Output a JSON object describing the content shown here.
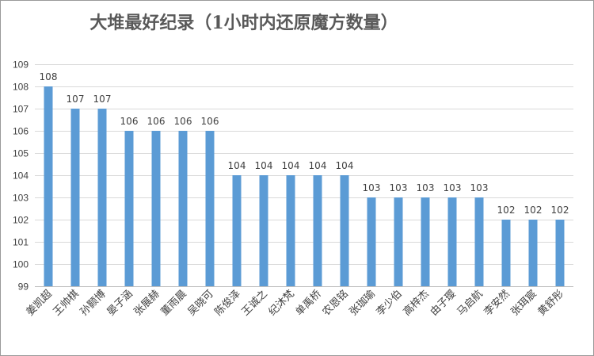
{
  "chart_data": {
    "type": "bar",
    "title": "大堆最好纪录（1小时内还原魔方数量）",
    "xlabel": "",
    "ylabel": "",
    "ylim": [
      99,
      109
    ],
    "yticks": [
      99,
      100,
      101,
      102,
      103,
      104,
      105,
      106,
      107,
      108,
      109
    ],
    "categories": [
      "姜凯超",
      "王帅棋",
      "孙颢博",
      "晏子涵",
      "张展赫",
      "董雨晨",
      "吴晓可",
      "陈俊泽",
      "王诚之",
      "纪沐梵",
      "单禹桥",
      "农恩铭",
      "张珈瑜",
      "李少伯",
      "高梓杰",
      "由子璎",
      "马启航",
      "李安然",
      "张珥宸",
      "黄舒彤"
    ],
    "values": [
      108,
      107,
      107,
      106,
      106,
      106,
      106,
      104,
      104,
      104,
      104,
      104,
      103,
      103,
      103,
      103,
      103,
      102,
      102,
      102
    ],
    "grid": true,
    "legend": "none",
    "bar_color": "#5b9bd5"
  }
}
